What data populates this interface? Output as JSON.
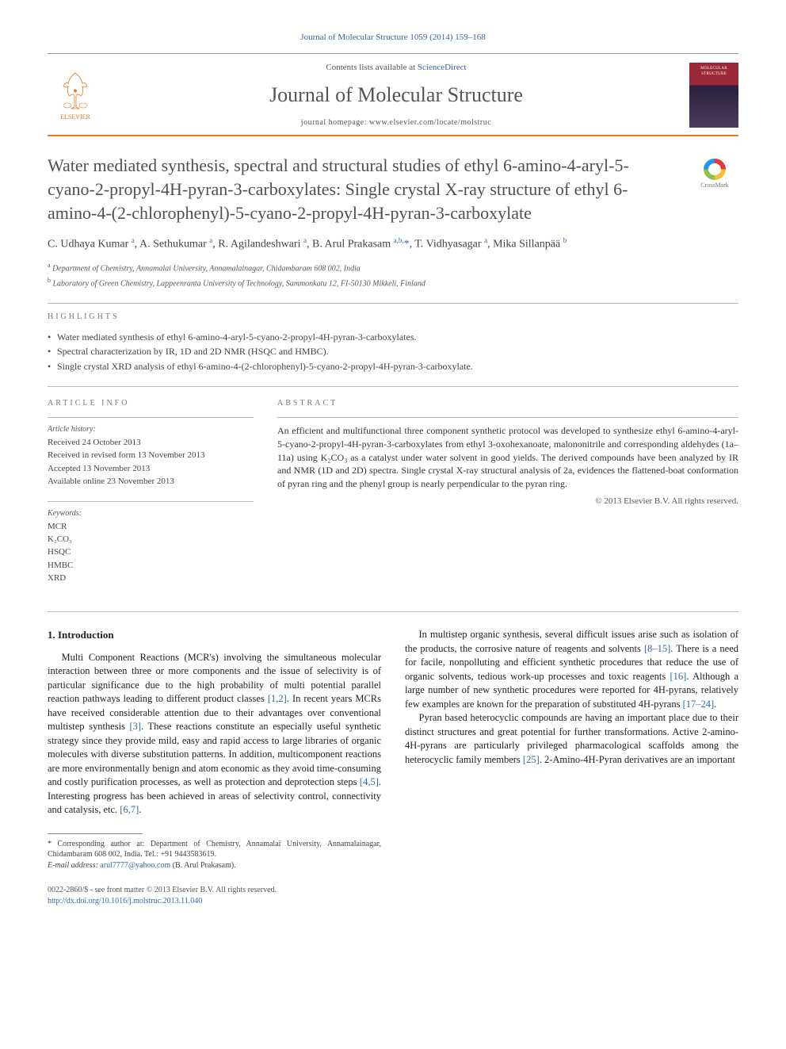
{
  "citation": "Journal of Molecular Structure 1059 (2014) 159–168",
  "header": {
    "contents_prefix": "Contents lists available at ",
    "contents_link": "ScienceDirect",
    "journal_name": "Journal of Molecular Structure",
    "homepage_prefix": "journal homepage: ",
    "homepage_url": "www.elsevier.com/locate/molstruc",
    "publisher_name": "ELSEVIER",
    "cover_title": "MOLECULAR STRUCTURE"
  },
  "crossmark_label": "CrossMark",
  "title": "Water mediated synthesis, spectral and structural studies of ethyl 6-amino-4-aryl-5-cyano-2-propyl-4H-pyran-3-carboxylates: Single crystal X-ray structure of ethyl 6-amino-4-(2-chlorophenyl)-5-cyano-2-propyl-4H-pyran-3-carboxylate",
  "authors_html": "C. Udhaya Kumar <sup>a</sup>, A. Sethukumar <sup>a</sup>, R. Agilandeshwari <sup>a</sup>, B. Arul Prakasam <sup>a,b,</sup><span class='star'>*</span>, T. Vidhyasagar <sup>a</sup>, Mika Sillanpää <sup>b</sup>",
  "affiliations": [
    {
      "sup": "a",
      "text": "Department of Chemistry, Annamalai University, Annamalainagar, Chidambaram 608 002, India"
    },
    {
      "sup": "b",
      "text": "Laboratory of Green Chemistry, Lappeenranta University of Technology, Sammonkatu 12, FI-50130 Mikkeli, Finland"
    }
  ],
  "highlights": {
    "label": "HIGHLIGHTS",
    "items": [
      "Water mediated synthesis of ethyl 6-amino-4-aryl-5-cyano-2-propyl-4H-pyran-3-carboxylates.",
      "Spectral characterization by IR, 1D and 2D NMR (HSQC and HMBC).",
      "Single crystal XRD analysis of ethyl 6-amino-4-(2-chlorophenyl)-5-cyano-2-propyl-4H-pyran-3-carboxylate."
    ]
  },
  "article_info": {
    "label": "ARTICLE INFO",
    "history_head": "Article history:",
    "history": [
      "Received 24 October 2013",
      "Received in revised form 13 November 2013",
      "Accepted 13 November 2013",
      "Available online 23 November 2013"
    ],
    "keywords_head": "Keywords:",
    "keywords": [
      "MCR",
      "K₂CO₃",
      "HSQC",
      "HMBC",
      "XRD"
    ]
  },
  "abstract": {
    "label": "ABSTRACT",
    "text": "An efficient and multifunctional three component synthetic protocol was developed to synthesize ethyl 6-amino-4-aryl-5-cyano-2-propyl-4H-pyran-3-carboxylates from ethyl 3-oxohexanoate, malononitrile and corresponding aldehydes (1a–11a) using K₂CO₃ as a catalyst under water solvent in good yields. The derived compounds have been analyzed by IR and NMR (1D and 2D) spectra. Single crystal X-ray structural analysis of 2a, evidences the flattened-boat conformation of pyran ring and the phenyl group is nearly perpendicular to the pyran ring.",
    "copyright": "© 2013 Elsevier B.V. All rights reserved."
  },
  "body": {
    "section_num": "1.",
    "section_title": "Introduction",
    "paragraphs": [
      "Multi Component Reactions (MCR's) involving the simultaneous molecular interaction between three or more components and the issue of selectivity is of particular significance due to the high probability of multi potential parallel reaction pathways leading to different product classes <a class='ref' href='#'>[1,2]</a>. In recent years MCRs have received considerable attention due to their advantages over conventional multistep synthesis <a class='ref' href='#'>[3]</a>. These reactions constitute an especially useful synthetic strategy since they provide mild, easy and rapid access to large libraries of organic molecules with diverse substitution patterns. In addition, multicomponent reactions are more environmentally benign and atom economic as they avoid time-consuming and costly purification processes, as well as protection and deprotection steps <a class='ref' href='#'>[4,5]</a>. Interesting progress has been achieved in areas of selectivity control, connectivity and catalysis, etc. <a class='ref' href='#'>[6,7]</a>.",
      "In multistep organic synthesis, several difficult issues arise such as isolation of the products, the corrosive nature of reagents and solvents <a class='ref' href='#'>[8–15]</a>. There is a need for facile, nonpolluting and efficient synthetic procedures that reduce the use of organic solvents, tedious work-up processes and toxic reagents <a class='ref' href='#'>[16]</a>. Although a large number of new synthetic procedures were reported for 4H-pyrans, relatively few examples are known for the preparation of substituted 4H-pyrans <a class='ref' href='#'>[17–24]</a>.",
      "Pyran based heterocyclic compounds are having an important place due to their distinct structures and great potential for further transformations. Active 2-amino-4H-pyrans are particularly privileged pharmacological scaffolds among the heterocyclic family members <a class='ref' href='#'>[25]</a>. 2-Amino-4H-Pyran derivatives are an important"
    ]
  },
  "footnote": {
    "corr": "* Corresponding author at: Department of Chemistry, Annamalai University, Annamalainagar, Chidambaram 608 002, India. Tel.: +91 9443583619.",
    "email_label": "E-mail address:",
    "email": "arul7777@yahoo.com",
    "email_name": "(B. Arul Prakasam)."
  },
  "footer": {
    "issn": "0022-2860/$ - see front matter © 2013 Elsevier B.V. All rights reserved.",
    "doi": "http://dx.doi.org/10.1016/j.molstruc.2013.11.040"
  },
  "colors": {
    "accent": "#e67820",
    "link": "#3366aa",
    "cover_top": "#9b2838",
    "cover_bottom": "#2a1f3d",
    "text": "#333333"
  }
}
